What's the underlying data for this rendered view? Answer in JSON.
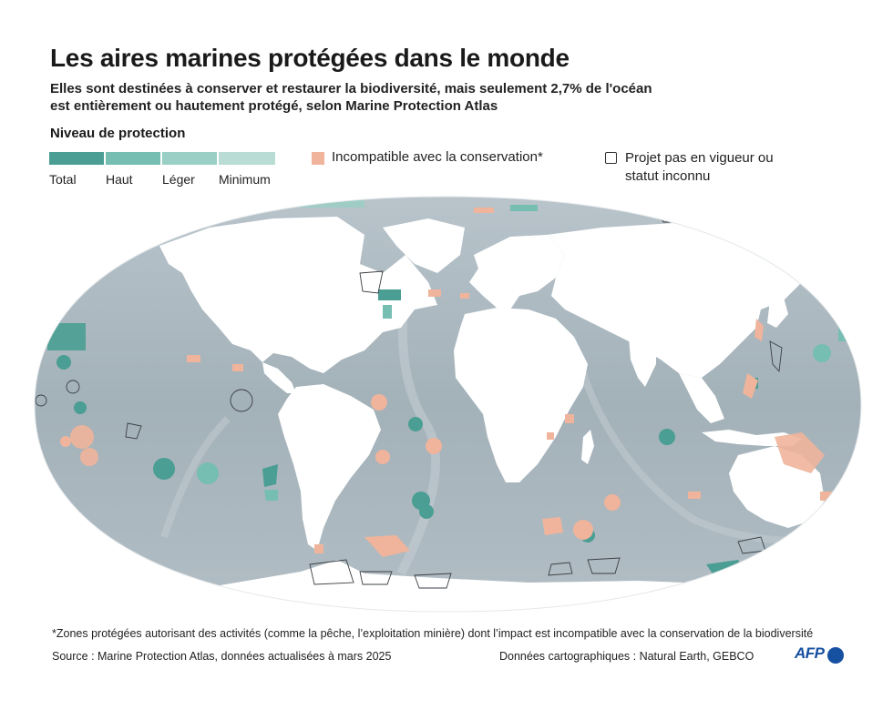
{
  "title": "Les aires marines protégées dans le monde",
  "subtitle": "Elles sont destinées à conserver et restaurer la biodiversité, mais seulement 2,7% de l'océan est entièrement ou hautement protégé, selon Marine Protection Atlas",
  "legend": {
    "title": "Niveau de protection",
    "levels": [
      {
        "label": "Total",
        "color": "#4a9e94"
      },
      {
        "label": "Haut",
        "color": "#76bdb2"
      },
      {
        "label": "Léger",
        "color": "#99cfc4"
      },
      {
        "label": "Minimum",
        "color": "#b9ddd4"
      }
    ],
    "incompatible": {
      "label": "Incompatible avec la conservation*",
      "color": "#efb49b"
    },
    "project": {
      "label": "Projet pas en vigueur ou statut inconnu"
    }
  },
  "colors": {
    "ocean": "#a7b4bc",
    "land": "#ffffff",
    "text": "#1a1a1a",
    "afp": "#1650a0"
  },
  "footnote": "*Zones protégées autorisant des activités (comme la pêche, l’exploitation minière) dont l’impact est incompatible avec la conservation de la biodiversité",
  "source": "Source : Marine Protection Atlas, données actualisées à mars 2025",
  "credits": "Données cartographiques : Natural Earth, GEBCO",
  "logo": "AFP"
}
